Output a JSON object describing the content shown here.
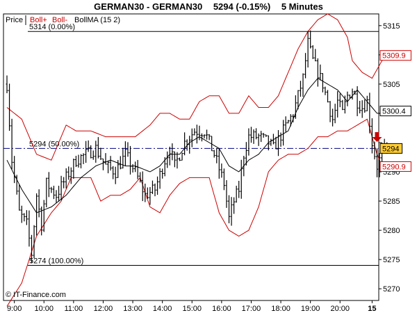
{
  "header": {
    "instrument": "GERMAN30 - GERMAN30",
    "quote": "5294 (-0.15%)",
    "timeframe": "5 Minutes"
  },
  "legend": {
    "panel": "Price",
    "boll_plus": "Boll+",
    "boll_minus": "Boll-",
    "bollma": "BollMA (15 2)"
  },
  "watermark": "© IT-Finance.com",
  "colors": {
    "band": "#cc0000",
    "ma": "#000000",
    "fib_line": "#000000",
    "mid_line": "#000080",
    "arrow": "#cc0000",
    "current_price_bg": "#ffcc33",
    "band_label_border": "#cc0000"
  },
  "chart_data": {
    "type": "ohlc",
    "ylim": [
      5268,
      5317
    ],
    "ytick_values": [
      5270,
      5275,
      5280,
      5285,
      5290,
      5295,
      5300,
      5305,
      5310,
      5315
    ],
    "ytick_labels": [
      "5270",
      "5275",
      "5280",
      "5285",
      "5290",
      "",
      "",
      "5305",
      "",
      "5315"
    ],
    "xtick_labels": [
      "9:00",
      "10:00",
      "11:00",
      "12:00",
      "13:00",
      "14:00",
      "15:00",
      "16:00",
      "17:00",
      "18:00",
      "19:00",
      "20:00",
      "15"
    ],
    "xtick_index": [
      3,
      15,
      27,
      39,
      51,
      63,
      75,
      87,
      99,
      111,
      123,
      135,
      148
    ],
    "bar_count": 155,
    "fib_levels": [
      {
        "value": 5314,
        "label": "5314 (0.00%)"
      },
      {
        "value": 5294,
        "label": "5294 (50.00%)",
        "dashed": true
      },
      {
        "value": 5274,
        "label": "5274 (100.00%)"
      }
    ],
    "value_labels": [
      {
        "value": 5309.9,
        "label": "5309.9",
        "kind": "upper-band"
      },
      {
        "value": 5300.4,
        "label": "5300.4",
        "kind": "ma"
      },
      {
        "value": 5294,
        "label": "5294",
        "kind": "price"
      },
      {
        "value": 5290.9,
        "label": "5290.9",
        "kind": "lower-band"
      }
    ],
    "close_knots": [
      [
        0,
        5305
      ],
      [
        2,
        5292
      ],
      [
        5,
        5283
      ],
      [
        8,
        5281
      ],
      [
        10,
        5276
      ],
      [
        12,
        5286
      ],
      [
        14,
        5281
      ],
      [
        16,
        5288
      ],
      [
        20,
        5286
      ],
      [
        24,
        5289
      ],
      [
        28,
        5292
      ],
      [
        32,
        5293
      ],
      [
        36,
        5294
      ],
      [
        40,
        5291
      ],
      [
        44,
        5290
      ],
      [
        48,
        5293
      ],
      [
        52,
        5290
      ],
      [
        56,
        5286
      ],
      [
        60,
        5287
      ],
      [
        64,
        5292
      ],
      [
        66,
        5294
      ],
      [
        68,
        5291
      ],
      [
        72,
        5295
      ],
      [
        76,
        5297
      ],
      [
        80,
        5297
      ],
      [
        84,
        5293
      ],
      [
        88,
        5288
      ],
      [
        90,
        5282
      ],
      [
        92,
        5285
      ],
      [
        94,
        5287
      ],
      [
        96,
        5293
      ],
      [
        98,
        5296
      ],
      [
        102,
        5296
      ],
      [
        106,
        5295
      ],
      [
        108,
        5294
      ],
      [
        112,
        5297
      ],
      [
        116,
        5300
      ],
      [
        118,
        5303
      ],
      [
        120,
        5306
      ],
      [
        122,
        5312
      ],
      [
        124,
        5309
      ],
      [
        126,
        5307
      ],
      [
        128,
        5305
      ],
      [
        130,
        5302
      ],
      [
        132,
        5299
      ],
      [
        134,
        5302
      ],
      [
        136,
        5300
      ],
      [
        138,
        5303
      ],
      [
        140,
        5304
      ],
      [
        142,
        5302
      ],
      [
        144,
        5301
      ],
      [
        146,
        5302
      ],
      [
        148,
        5295
      ],
      [
        150,
        5291
      ],
      [
        152,
        5293
      ],
      [
        154,
        5294
      ]
    ],
    "upper_knots": [
      [
        0,
        5301
      ],
      [
        6,
        5299
      ],
      [
        12,
        5293
      ],
      [
        18,
        5292
      ],
      [
        24,
        5298
      ],
      [
        28,
        5297
      ],
      [
        34,
        5297
      ],
      [
        40,
        5296
      ],
      [
        46,
        5296
      ],
      [
        52,
        5296
      ],
      [
        58,
        5298
      ],
      [
        62,
        5300
      ],
      [
        66,
        5300
      ],
      [
        70,
        5299
      ],
      [
        74,
        5299
      ],
      [
        78,
        5302
      ],
      [
        82,
        5303
      ],
      [
        86,
        5303
      ],
      [
        90,
        5300
      ],
      [
        94,
        5300
      ],
      [
        98,
        5303
      ],
      [
        102,
        5301
      ],
      [
        106,
        5301
      ],
      [
        110,
        5303
      ],
      [
        114,
        5307
      ],
      [
        118,
        5311
      ],
      [
        122,
        5314
      ],
      [
        126,
        5316
      ],
      [
        130,
        5317
      ],
      [
        134,
        5316
      ],
      [
        138,
        5313
      ],
      [
        140,
        5309
      ],
      [
        144,
        5307
      ],
      [
        148,
        5306
      ],
      [
        152,
        5309
      ],
      [
        154,
        5310
      ]
    ],
    "lower_knots": [
      [
        0,
        5267
      ],
      [
        6,
        5271
      ],
      [
        12,
        5279
      ],
      [
        18,
        5283
      ],
      [
        22,
        5285
      ],
      [
        26,
        5289
      ],
      [
        30,
        5289
      ],
      [
        34,
        5289
      ],
      [
        38,
        5285
      ],
      [
        42,
        5286
      ],
      [
        46,
        5286
      ],
      [
        50,
        5287
      ],
      [
        54,
        5289
      ],
      [
        58,
        5284
      ],
      [
        62,
        5283
      ],
      [
        66,
        5286
      ],
      [
        70,
        5288
      ],
      [
        74,
        5289
      ],
      [
        78,
        5289
      ],
      [
        82,
        5289
      ],
      [
        86,
        5283
      ],
      [
        90,
        5280
      ],
      [
        94,
        5279
      ],
      [
        98,
        5280
      ],
      [
        102,
        5284
      ],
      [
        106,
        5290
      ],
      [
        110,
        5292
      ],
      [
        114,
        5293
      ],
      [
        118,
        5293
      ],
      [
        122,
        5294
      ],
      [
        126,
        5296
      ],
      [
        130,
        5296
      ],
      [
        134,
        5297
      ],
      [
        138,
        5297
      ],
      [
        142,
        5298
      ],
      [
        146,
        5299
      ],
      [
        150,
        5293
      ],
      [
        152,
        5291
      ],
      [
        154,
        5291
      ]
    ],
    "ma_knots": [
      [
        0,
        5292
      ],
      [
        6,
        5287
      ],
      [
        12,
        5283
      ],
      [
        18,
        5284
      ],
      [
        24,
        5286
      ],
      [
        30,
        5289
      ],
      [
        36,
        5291
      ],
      [
        42,
        5292
      ],
      [
        48,
        5291
      ],
      [
        52,
        5291
      ],
      [
        58,
        5290
      ],
      [
        62,
        5291
      ],
      [
        66,
        5293
      ],
      [
        70,
        5293
      ],
      [
        74,
        5295
      ],
      [
        78,
        5296
      ],
      [
        82,
        5295
      ],
      [
        86,
        5294
      ],
      [
        90,
        5291
      ],
      [
        94,
        5290
      ],
      [
        98,
        5292
      ],
      [
        102,
        5293
      ],
      [
        106,
        5295
      ],
      [
        110,
        5296
      ],
      [
        114,
        5297
      ],
      [
        118,
        5301
      ],
      [
        122,
        5304
      ],
      [
        126,
        5306
      ],
      [
        130,
        5305
      ],
      [
        134,
        5304
      ],
      [
        138,
        5302
      ],
      [
        142,
        5304
      ],
      [
        146,
        5302
      ],
      [
        150,
        5300
      ],
      [
        154,
        5300
      ]
    ],
    "signal_arrow": {
      "direction": "down",
      "bar_index": 150
    }
  }
}
